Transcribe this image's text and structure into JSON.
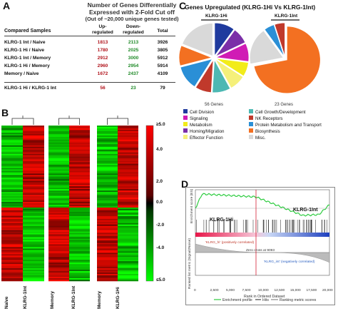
{
  "panel_a": {
    "letter": "A",
    "title_lines": [
      "Number of Genes Differentially",
      "Expressed with 2-Fold Cut off",
      "(Out of ~20,000 unique genes tested)"
    ],
    "headers": {
      "samples": "Compared Samples",
      "up": "Up-\nregulated",
      "down": "Down-\nregulated",
      "total": "Total"
    },
    "rows": [
      {
        "name": "KLRG-1 Int / Naive",
        "up": "1813",
        "down": "2113",
        "total": "3926"
      },
      {
        "name": "KLRG-1 Hi / Naive",
        "up": "1780",
        "down": "2025",
        "total": "3805"
      },
      {
        "name": "KLRG-1 Int / Memory",
        "up": "2912",
        "down": "3000",
        "total": "5912"
      },
      {
        "name": "KLRG-1 Hi / Memory",
        "up": "2960",
        "down": "2954",
        "total": "5914"
      },
      {
        "name": "Memory / Naive",
        "up": "1672",
        "down": "2437",
        "total": "4109"
      },
      {
        "name": "KLRG-1 Hi / KLRG-1 Int",
        "up": "56",
        "down": "23",
        "total": "79"
      }
    ]
  },
  "panel_b": {
    "letter": "B",
    "scale_labels": [
      "≥5.0",
      "4.0",
      "2.0",
      "0.0",
      "-2.0",
      "-4.0",
      "≤5.0"
    ],
    "column_labels": [
      "Naive",
      "KLRG-1Int",
      "Memory",
      "KLRG-1Int",
      "Memory",
      "KLRG-1Hi"
    ]
  },
  "panel_c": {
    "letter": "C",
    "title": "Genes Upregulated (KLRG-1Hi Vs KLRG-1Int)",
    "pie1_label": "KLRG-1Hi",
    "pie2_label": "KLRG-1Int",
    "pie1_count": "56 Genes",
    "pie2_count": "23 Genes",
    "legend": [
      {
        "label": "Cell Division",
        "color": "#1f3a9e"
      },
      {
        "label": "Signaling",
        "color": "#d01bb5"
      },
      {
        "label": "Metabolism",
        "color": "#f2ec1a"
      },
      {
        "label": "Homing/Migration",
        "color": "#7b2fa8"
      },
      {
        "label": "Effector Function",
        "color": "#f5f07a"
      },
      {
        "label": "Cell Growth/Development",
        "color": "#4db8b3"
      },
      {
        "label": "NK Receptors",
        "color": "#c0392b"
      },
      {
        "label": "Protein Metabolism and Transport",
        "color": "#2a8fd6"
      },
      {
        "label": "Biosynthesis",
        "color": "#f37021"
      },
      {
        "label": "Misc.",
        "color": "#d9d9d9"
      }
    ],
    "pie1_slices": [
      {
        "color": "#1f3a9e",
        "frac": 0.1
      },
      {
        "color": "#7b2fa8",
        "frac": 0.08
      },
      {
        "color": "#d01bb5",
        "frac": 0.09
      },
      {
        "color": "#f2ec1a",
        "frac": 0.07
      },
      {
        "color": "#f5f07a",
        "frac": 0.08
      },
      {
        "color": "#4db8b3",
        "frac": 0.09
      },
      {
        "color": "#c0392b",
        "frac": 0.08
      },
      {
        "color": "#2a8fd6",
        "frac": 0.12
      },
      {
        "color": "#f37021",
        "frac": 0.1
      },
      {
        "color": "#d9d9d9",
        "frac": 0.19
      }
    ],
    "pie2_slices": [
      {
        "color": "#f37021",
        "frac": 0.72
      },
      {
        "color": "#d9d9d9",
        "frac": 0.18
      },
      {
        "color": "#2a8fd6",
        "frac": 0.05
      },
      {
        "color": "#c0392b",
        "frac": 0.05
      }
    ]
  },
  "panel_d": {
    "letter": "D",
    "ylabel_top": "Enrichment score (ES)",
    "ylabel_bottom": "Ranked list metric (Signal2Noise)",
    "label_hi": "KLRG-1Hi",
    "label_int": "KLRG-1Int",
    "pos_corr": "'KLRG_hi' (positively correlated)",
    "neg_corr": "'KLRG_int' (negatively correlated)",
    "zero_cross": "Zero cross at 9093",
    "xlabel": "Rank in Ordered Dataset",
    "x_ticks": [
      "0",
      "2,500",
      "5,000",
      "7,500",
      "10,000",
      "12,500",
      "15,000",
      "17,500",
      "20,000"
    ],
    "legend": [
      "Enrichment profile",
      "Hits",
      "Ranking metric scores"
    ]
  }
}
